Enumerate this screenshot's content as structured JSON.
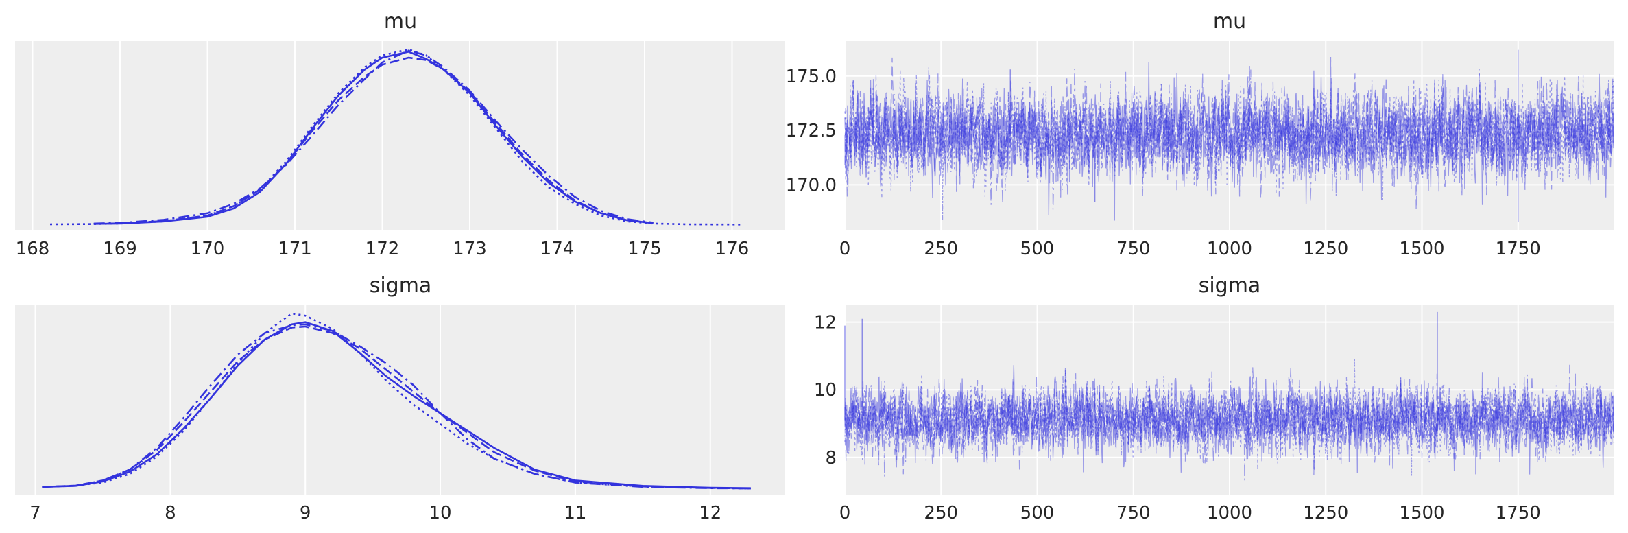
{
  "chart_data": [
    {
      "type": "line",
      "kind": "density",
      "title": "mu",
      "xlim": [
        167.8,
        176.6
      ],
      "xticks": [
        168,
        169,
        170,
        171,
        172,
        173,
        174,
        175,
        176
      ],
      "grid": true,
      "line_color": "#3333dd",
      "series": [
        {
          "linestyle": "solid",
          "x": [
            168.7,
            169.0,
            169.5,
            170.0,
            170.3,
            170.6,
            170.9,
            171.2,
            171.5,
            171.8,
            172.0,
            172.3,
            172.5,
            172.7,
            173.0,
            173.3,
            173.6,
            173.9,
            174.2,
            174.5,
            174.8,
            175.1
          ],
          "y": [
            0.005,
            0.006,
            0.015,
            0.035,
            0.07,
            0.14,
            0.26,
            0.41,
            0.55,
            0.66,
            0.71,
            0.735,
            0.705,
            0.66,
            0.56,
            0.42,
            0.29,
            0.18,
            0.1,
            0.05,
            0.02,
            0.008
          ]
        },
        {
          "linestyle": "dashed",
          "x": [
            168.7,
            169.0,
            169.5,
            170.0,
            170.3,
            170.6,
            170.9,
            171.2,
            171.5,
            171.8,
            172.0,
            172.3,
            172.5,
            172.7,
            173.0,
            173.3,
            173.6,
            173.9,
            174.2,
            174.5,
            174.8,
            175.1
          ],
          "y": [
            0.005,
            0.007,
            0.017,
            0.04,
            0.08,
            0.15,
            0.26,
            0.4,
            0.53,
            0.63,
            0.68,
            0.71,
            0.7,
            0.66,
            0.565,
            0.43,
            0.3,
            0.19,
            0.105,
            0.05,
            0.02,
            0.008
          ]
        },
        {
          "linestyle": "dashdot",
          "x": [
            168.7,
            169.0,
            169.5,
            170.0,
            170.3,
            170.6,
            170.9,
            171.2,
            171.5,
            171.8,
            172.0,
            172.3,
            172.5,
            172.7,
            173.0,
            173.3,
            173.6,
            173.9,
            174.2,
            174.5,
            174.8,
            175.1
          ],
          "y": [
            0.006,
            0.009,
            0.022,
            0.05,
            0.09,
            0.155,
            0.255,
            0.38,
            0.51,
            0.62,
            0.69,
            0.74,
            0.72,
            0.67,
            0.57,
            0.44,
            0.32,
            0.21,
            0.12,
            0.06,
            0.025,
            0.01
          ]
        },
        {
          "linestyle": "dotted",
          "x": [
            168.2,
            168.7,
            169.0,
            169.5,
            170.0,
            170.3,
            170.6,
            170.9,
            171.2,
            171.5,
            171.8,
            172.0,
            172.3,
            172.5,
            172.7,
            173.0,
            173.3,
            173.6,
            173.9,
            174.2,
            174.5,
            174.8,
            175.1,
            175.5,
            176.1
          ],
          "y": [
            0.003,
            0.004,
            0.006,
            0.015,
            0.04,
            0.08,
            0.15,
            0.27,
            0.42,
            0.56,
            0.67,
            0.72,
            0.745,
            0.72,
            0.66,
            0.55,
            0.41,
            0.27,
            0.16,
            0.09,
            0.04,
            0.015,
            0.006,
            0.003,
            0.002
          ]
        }
      ]
    },
    {
      "type": "line",
      "kind": "trace",
      "title": "mu",
      "xlim": [
        0,
        2000
      ],
      "ylim": [
        167.9,
        176.6
      ],
      "xticks": [
        0,
        250,
        500,
        750,
        1000,
        1250,
        1500,
        1750
      ],
      "yticks": [
        "170.0",
        "172.5",
        "175.0"
      ],
      "grid": true,
      "line_color": "#3333dd",
      "chains": 4,
      "draws": 2000,
      "center": 172.3,
      "band": [
        170.3,
        174.3
      ],
      "notable_points": [
        {
          "x": 1750,
          "y": 176.2
        },
        {
          "x": 1750,
          "y": 168.3
        },
        {
          "x": 650,
          "y": 169.2
        },
        {
          "x": 430,
          "y": 175.3
        }
      ]
    },
    {
      "type": "line",
      "kind": "density",
      "title": "sigma",
      "xlim": [
        6.85,
        12.55
      ],
      "xticks": [
        7,
        8,
        9,
        10,
        11,
        12
      ],
      "grid": true,
      "line_color": "#3333dd",
      "series": [
        {
          "linestyle": "solid",
          "x": [
            7.05,
            7.3,
            7.5,
            7.7,
            7.9,
            8.1,
            8.3,
            8.5,
            8.7,
            8.9,
            9.0,
            9.2,
            9.4,
            9.6,
            9.8,
            10.0,
            10.2,
            10.4,
            10.7,
            11.0,
            11.5,
            12.0,
            12.3
          ],
          "y": [
            0.01,
            0.015,
            0.035,
            0.08,
            0.16,
            0.28,
            0.42,
            0.57,
            0.69,
            0.76,
            0.77,
            0.73,
            0.63,
            0.52,
            0.43,
            0.35,
            0.27,
            0.19,
            0.09,
            0.04,
            0.015,
            0.006,
            0.004
          ]
        },
        {
          "linestyle": "dashed",
          "x": [
            7.05,
            7.3,
            7.5,
            7.7,
            7.9,
            8.1,
            8.3,
            8.5,
            8.7,
            8.9,
            9.0,
            9.2,
            9.4,
            9.6,
            9.8,
            10.0,
            10.2,
            10.4,
            10.7,
            11.0,
            11.5,
            12.0,
            12.3
          ],
          "y": [
            0.01,
            0.016,
            0.04,
            0.09,
            0.18,
            0.31,
            0.45,
            0.59,
            0.69,
            0.745,
            0.75,
            0.72,
            0.65,
            0.55,
            0.45,
            0.35,
            0.26,
            0.17,
            0.085,
            0.035,
            0.012,
            0.005,
            0.003
          ]
        },
        {
          "linestyle": "dashdot",
          "x": [
            7.05,
            7.3,
            7.5,
            7.7,
            7.9,
            8.1,
            8.3,
            8.5,
            8.7,
            8.9,
            9.0,
            9.2,
            9.4,
            9.6,
            9.8,
            10.0,
            10.2,
            10.4,
            10.7,
            11.0,
            11.5,
            12.0,
            12.3
          ],
          "y": [
            0.01,
            0.015,
            0.04,
            0.09,
            0.19,
            0.33,
            0.48,
            0.62,
            0.72,
            0.755,
            0.76,
            0.73,
            0.66,
            0.58,
            0.48,
            0.35,
            0.23,
            0.14,
            0.07,
            0.03,
            0.01,
            0.004,
            0.003
          ]
        },
        {
          "linestyle": "dotted",
          "x": [
            7.35,
            7.5,
            7.7,
            7.9,
            8.1,
            8.3,
            8.5,
            8.7,
            8.9,
            9.0,
            9.2,
            9.4,
            9.6,
            9.8,
            10.0,
            10.2,
            10.4,
            10.7,
            11.0,
            11.5,
            12.0,
            12.3
          ],
          "y": [
            0.02,
            0.03,
            0.07,
            0.15,
            0.27,
            0.42,
            0.58,
            0.72,
            0.81,
            0.8,
            0.74,
            0.63,
            0.5,
            0.39,
            0.3,
            0.21,
            0.14,
            0.07,
            0.03,
            0.012,
            0.005,
            0.003
          ]
        }
      ]
    },
    {
      "type": "line",
      "kind": "trace",
      "title": "sigma",
      "xlim": [
        0,
        2000
      ],
      "ylim": [
        6.9,
        12.5
      ],
      "xticks": [
        0,
        250,
        500,
        750,
        1000,
        1250,
        1500,
        1750
      ],
      "yticks": [
        "8",
        "10",
        "12"
      ],
      "grid": true,
      "line_color": "#3333dd",
      "chains": 4,
      "draws": 2000,
      "center": 9.1,
      "band": [
        8.2,
        10.1
      ],
      "notable_points": [
        {
          "x": 1540,
          "y": 12.3
        },
        {
          "x": 0,
          "y": 11.9
        },
        {
          "x": 45,
          "y": 12.1
        },
        {
          "x": 1640,
          "y": 7.5
        }
      ]
    }
  ]
}
